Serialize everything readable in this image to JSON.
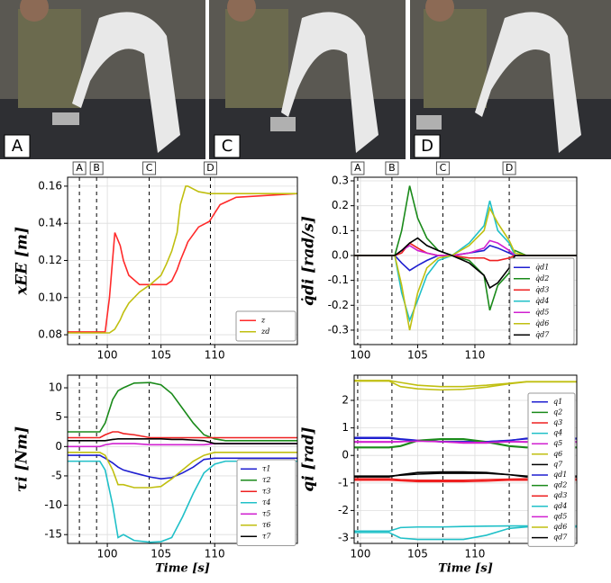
{
  "photos": [
    {
      "label": "A"
    },
    {
      "label": "C"
    },
    {
      "label": "D"
    }
  ],
  "chart_data": [
    {
      "type": "line",
      "ylabel": "xEE [m]",
      "xlim": [
        96.3,
        117.7
      ],
      "xticks": [
        100,
        105,
        110
      ],
      "ylim": [
        0.0747,
        0.1648
      ],
      "yticks": [
        0.08,
        {
          "value": 0.1,
          "label": "0.10"
        },
        0.12,
        0.14,
        0.16
      ],
      "grid": true,
      "events": [
        {
          "label": "A",
          "x": 97.4
        },
        {
          "label": "B",
          "x": 99.0
        },
        {
          "label": "C",
          "x": 103.9
        },
        {
          "label": "D",
          "x": 109.6
        }
      ],
      "x": [
        96.3,
        99.8,
        100.2,
        100.7,
        101.2,
        101.5,
        102,
        103,
        104,
        105,
        105.5,
        106,
        106.5,
        106.8,
        107.3,
        107.5,
        108.5,
        109.5,
        110.5,
        112,
        117.7
      ],
      "series": [
        {
          "name": "z",
          "color": "#ff2a2a",
          "values": [
            0.0815,
            0.0815,
            0.1,
            0.135,
            0.128,
            0.12,
            0.112,
            0.107,
            0.107,
            0.107,
            0.107,
            0.109,
            0.115,
            0.12,
            0.127,
            0.13,
            0.138,
            0.141,
            0.15,
            0.154,
            0.156
          ]
        },
        {
          "name": "zd",
          "color": "#c0bf10",
          "values": [
            0.081,
            0.081,
            0.081,
            0.083,
            0.088,
            0.092,
            0.097,
            0.103,
            0.107,
            0.112,
            0.118,
            0.125,
            0.135,
            0.15,
            0.16,
            0.16,
            0.157,
            0.156,
            0.156,
            0.156,
            0.156
          ]
        }
      ]
    },
    {
      "type": "line",
      "ylabel": "q̇di [rad/s]",
      "xlim": [
        99.45,
        118.9
      ],
      "xticks": [
        100,
        105,
        110
      ],
      "ylim": [
        -0.358,
        0.3145
      ],
      "yticks": [
        -0.3,
        -0.2,
        -0.1,
        {
          "value": 0,
          "label": "0.0"
        },
        0.1,
        0.2,
        0.3
      ],
      "grid": true,
      "events": [
        {
          "label": "A",
          "x": 99.76
        },
        {
          "label": "B",
          "x": 102.75
        },
        {
          "label": "C",
          "x": 107.2
        },
        {
          "label": "D",
          "x": 113.0
        }
      ],
      "x": [
        99.5,
        103.0,
        103.6,
        104.3,
        105,
        105.8,
        106.8,
        108,
        109.5,
        110.8,
        111.3,
        112,
        113,
        113.5,
        114.5,
        116,
        118.9
      ],
      "series": [
        {
          "name": "q̇d1",
          "color": "#1f1fd0",
          "values": [
            0,
            0,
            -0.03,
            -0.06,
            -0.04,
            -0.02,
            0,
            0,
            0.01,
            0.02,
            0.04,
            0.03,
            0.01,
            0,
            0,
            0,
            0
          ]
        },
        {
          "name": "q̇d2",
          "color": "#1a8a1a",
          "values": [
            0,
            0,
            0.1,
            0.28,
            0.15,
            0.07,
            0.02,
            0,
            -0.02,
            -0.08,
            -0.22,
            -0.12,
            -0.07,
            0.02,
            0,
            0,
            0
          ]
        },
        {
          "name": "q̇d3",
          "color": "#ee2020",
          "values": [
            0,
            0,
            0.01,
            0.05,
            0.03,
            0.01,
            0,
            0,
            -0.01,
            -0.01,
            -0.02,
            -0.02,
            -0.01,
            0,
            0,
            0,
            0
          ]
        },
        {
          "name": "q̇d4",
          "color": "#20c0c8",
          "values": [
            0,
            0,
            -0.15,
            -0.26,
            -0.18,
            -0.08,
            -0.02,
            0,
            0.05,
            0.12,
            0.22,
            0.1,
            0.05,
            0,
            0,
            0,
            0
          ]
        },
        {
          "name": "q̇d5",
          "color": "#d020d0",
          "values": [
            0,
            0,
            0.02,
            0.04,
            0.02,
            0.01,
            0,
            0,
            0.01,
            0.03,
            0.06,
            0.05,
            0.02,
            0,
            0,
            0,
            0
          ]
        },
        {
          "name": "q̇d6",
          "color": "#c0bf10",
          "values": [
            0,
            0,
            -0.12,
            -0.3,
            -0.15,
            -0.05,
            -0.01,
            0,
            0.04,
            0.1,
            0.19,
            0.13,
            0.06,
            0.01,
            0,
            0,
            0
          ]
        },
        {
          "name": "q̇d7",
          "color": "#000000",
          "values": [
            0,
            0,
            0.02,
            0.05,
            0.07,
            0.04,
            0.02,
            0,
            -0.03,
            -0.08,
            -0.13,
            -0.11,
            -0.05,
            0,
            0,
            0,
            0
          ]
        }
      ]
    },
    {
      "type": "line",
      "ylabel": "τi [Nm]",
      "xlabel": "Time [s]",
      "xlim": [
        96.3,
        117.7
      ],
      "xticks": [
        100,
        105,
        110
      ],
      "ylim": [
        -16.5,
        12.15
      ],
      "yticks": [
        -15,
        -10,
        -5,
        0,
        5,
        10
      ],
      "grid": true,
      "event_lines": [
        97.4,
        99.0,
        103.9,
        109.6
      ],
      "x": [
        96.3,
        99.3,
        99.8,
        100.5,
        101,
        101.5,
        102.5,
        104,
        105,
        106,
        107,
        108,
        109,
        110,
        111,
        113,
        117.7
      ],
      "series": [
        {
          "name": "τ1",
          "color": "#1f1fd0",
          "values": [
            -1.5,
            -1.5,
            -2,
            -2.8,
            -3.5,
            -4,
            -4.5,
            -5.2,
            -5.5,
            -5.3,
            -4.5,
            -3.5,
            -2.2,
            -2,
            -2,
            -2,
            -2
          ]
        },
        {
          "name": "τ2",
          "color": "#1a8a1a",
          "values": [
            2.5,
            2.5,
            4,
            8,
            9.5,
            10,
            10.8,
            10.9,
            10.5,
            9,
            6.5,
            4,
            2,
            1.3,
            1,
            1,
            1
          ]
        },
        {
          "name": "τ3",
          "color": "#ee2020",
          "values": [
            1.5,
            1.5,
            2,
            2.5,
            2.5,
            2.2,
            2,
            1.5,
            1.5,
            1.5,
            1.5,
            1.5,
            1.5,
            1.5,
            1.5,
            1.5,
            1.5
          ]
        },
        {
          "name": "τ4",
          "color": "#20c0c8",
          "values": [
            -2.5,
            -2.5,
            -4,
            -10,
            -15.5,
            -15,
            -16,
            -16.3,
            -16.2,
            -15.5,
            -12,
            -8,
            -4.5,
            -3,
            -2.5,
            -2.5,
            -2.5
          ]
        },
        {
          "name": "τ5",
          "color": "#d020d0",
          "values": [
            0,
            0,
            0.3,
            0.5,
            0.5,
            0.5,
            0.5,
            0.3,
            0.3,
            0.3,
            0.3,
            0.3,
            0.3,
            0.5,
            0.5,
            0.5,
            0.5
          ]
        },
        {
          "name": "τ6",
          "color": "#c0bf10",
          "values": [
            -1,
            -1,
            -1.5,
            -4,
            -6.5,
            -6.5,
            -7,
            -7,
            -6.8,
            -5.5,
            -4,
            -2.5,
            -1.5,
            -1,
            -1,
            -1,
            -1
          ]
        },
        {
          "name": "τ7",
          "color": "#000000",
          "values": [
            1,
            1,
            1,
            1.2,
            1.3,
            1.3,
            1.3,
            1.3,
            1.3,
            1.2,
            1.2,
            1.1,
            1,
            0.5,
            0.5,
            0.5,
            0.5
          ]
        }
      ]
    },
    {
      "type": "line",
      "ylabel": "qi [rad]",
      "xlabel": "Time [s]",
      "xlim": [
        99.45,
        118.9
      ],
      "xticks": [
        100,
        105,
        110
      ],
      "ylim": [
        -3.196,
        2.915
      ],
      "yticks": [
        -3,
        -2,
        -1,
        0,
        1,
        2
      ],
      "grid": true,
      "event_lines": [
        99.76,
        102.75,
        107.2,
        113.0
      ],
      "x": [
        99.45,
        102.5,
        103.5,
        105,
        107,
        109,
        111,
        113,
        114.5,
        118.9
      ],
      "series": [
        {
          "name": "q1",
          "color": "#1f1fd0",
          "values": [
            0.65,
            0.65,
            0.6,
            0.55,
            0.5,
            0.5,
            0.5,
            0.55,
            0.6,
            0.6
          ]
        },
        {
          "name": "q2",
          "color": "#1a8a1a",
          "values": [
            0.3,
            0.3,
            0.35,
            0.55,
            0.6,
            0.6,
            0.5,
            0.35,
            0.3,
            0.3
          ]
        },
        {
          "name": "q3",
          "color": "#ee2020",
          "values": [
            -0.9,
            -0.9,
            -0.92,
            -0.95,
            -0.95,
            -0.95,
            -0.93,
            -0.9,
            -0.9,
            -0.9
          ]
        },
        {
          "name": "q4",
          "color": "#20c0c8",
          "values": [
            -2.8,
            -2.8,
            -3.0,
            -3.05,
            -3.05,
            -3.05,
            -2.9,
            -2.65,
            -2.6,
            -2.6
          ]
        },
        {
          "name": "q5",
          "color": "#d020d0",
          "values": [
            0.5,
            0.5,
            0.5,
            0.55,
            0.5,
            0.45,
            0.45,
            0.5,
            0.5,
            0.5
          ]
        },
        {
          "name": "q6",
          "color": "#c0bf10",
          "values": [
            2.72,
            2.72,
            2.65,
            2.55,
            2.5,
            2.5,
            2.55,
            2.62,
            2.68,
            2.68
          ]
        },
        {
          "name": "q7",
          "color": "#000000",
          "values": [
            -0.75,
            -0.75,
            -0.72,
            -0.68,
            -0.65,
            -0.65,
            -0.65,
            -0.7,
            -0.75,
            -0.75
          ]
        },
        {
          "name": "qd1",
          "color": "#1f1fd0",
          "values": [
            0.62,
            0.62,
            0.58,
            0.53,
            0.5,
            0.5,
            0.5,
            0.54,
            0.62,
            0.62
          ]
        },
        {
          "name": "qd2",
          "color": "#1a8a1a",
          "values": [
            0.28,
            0.28,
            0.33,
            0.53,
            0.58,
            0.58,
            0.48,
            0.33,
            0.28,
            0.28
          ]
        },
        {
          "name": "qd3",
          "color": "#ee2020",
          "values": [
            -0.85,
            -0.85,
            -0.88,
            -0.9,
            -0.9,
            -0.9,
            -0.88,
            -0.86,
            -0.85,
            -0.85
          ]
        },
        {
          "name": "qd4",
          "color": "#20c0c8",
          "values": [
            -2.75,
            -2.75,
            -2.62,
            -2.6,
            -2.6,
            -2.58,
            -2.57,
            -2.56,
            -2.56,
            -2.56
          ]
        },
        {
          "name": "qd5",
          "color": "#d020d0",
          "values": [
            0.48,
            0.48,
            0.5,
            0.52,
            0.5,
            0.47,
            0.47,
            0.5,
            0.48,
            0.48
          ]
        },
        {
          "name": "qd6",
          "color": "#c0bf10",
          "values": [
            2.7,
            2.7,
            2.5,
            2.42,
            2.38,
            2.4,
            2.48,
            2.6,
            2.67,
            2.67
          ]
        },
        {
          "name": "qd7",
          "color": "#000000",
          "values": [
            -0.78,
            -0.78,
            -0.7,
            -0.62,
            -0.6,
            -0.6,
            -0.62,
            -0.7,
            -0.78,
            -0.78
          ]
        }
      ]
    }
  ]
}
